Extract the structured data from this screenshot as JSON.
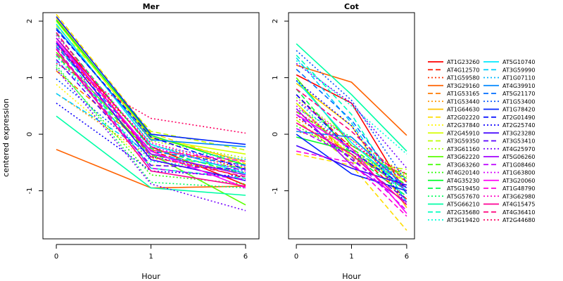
{
  "ylabel": "centered expression",
  "chart_data": [
    {
      "type": "line",
      "title": "Mer",
      "xlabel": "Hour",
      "ylabel": "centered expression",
      "x": [
        "0",
        "1",
        "6"
      ],
      "ylim": [
        -1.85,
        2.15
      ],
      "yticks": [
        -1,
        0,
        1,
        2
      ],
      "series": [
        {
          "name": "AT1G23260",
          "values": [
            1.7,
            -0.22,
            -0.9
          ]
        },
        {
          "name": "AT4G12570",
          "values": [
            1.62,
            -0.3,
            -0.78
          ]
        },
        {
          "name": "AT1G59580",
          "values": [
            1.55,
            -0.18,
            -0.62
          ]
        },
        {
          "name": "AT3G29160",
          "values": [
            -0.27,
            -0.95,
            -0.92
          ]
        },
        {
          "name": "AT1G53165",
          "values": [
            1.12,
            -0.28,
            -0.52
          ]
        },
        {
          "name": "AT1G53440",
          "values": [
            0.72,
            -0.42,
            -0.68
          ]
        },
        {
          "name": "AT1G64630",
          "values": [
            2.05,
            -0.05,
            -0.48
          ]
        },
        {
          "name": "AT2G02220",
          "values": [
            2.12,
            0.02,
            -0.52
          ]
        },
        {
          "name": "AT2G37840",
          "values": [
            0.88,
            -0.55,
            -0.58
          ]
        },
        {
          "name": "AT2G45910",
          "values": [
            2.0,
            -0.08,
            -0.35
          ]
        },
        {
          "name": "AT3G59350",
          "values": [
            1.92,
            0.05,
            -0.28
          ]
        },
        {
          "name": "AT3G61160",
          "values": [
            1.88,
            -0.12,
            -0.42
          ]
        },
        {
          "name": "AT3G62220",
          "values": [
            1.45,
            -0.35,
            -1.25
          ]
        },
        {
          "name": "AT3G63260",
          "values": [
            1.4,
            -0.38,
            -0.6
          ]
        },
        {
          "name": "AT4G20140",
          "values": [
            1.18,
            -0.72,
            -0.88
          ]
        },
        {
          "name": "AT4G35230",
          "values": [
            2.02,
            -0.02,
            -0.55
          ]
        },
        {
          "name": "AT5G19450",
          "values": [
            1.78,
            -0.25,
            -0.72
          ]
        },
        {
          "name": "AT5G57670",
          "values": [
            1.22,
            -0.85,
            -0.95
          ]
        },
        {
          "name": "AT5G66210",
          "values": [
            0.32,
            -0.95,
            -1.08
          ]
        },
        {
          "name": "AT2G35680",
          "values": [
            1.6,
            -0.6,
            -0.78
          ]
        },
        {
          "name": "AT3G19420",
          "values": [
            1.38,
            -0.48,
            -0.65
          ]
        },
        {
          "name": "AT5G10740",
          "values": [
            1.95,
            -0.18,
            -0.7
          ]
        },
        {
          "name": "AT3G59990",
          "values": [
            0.72,
            -0.35,
            -0.62
          ]
        },
        {
          "name": "AT1G07110",
          "values": [
            1.28,
            -0.22,
            -0.45
          ]
        },
        {
          "name": "AT4G39910",
          "values": [
            1.88,
            -0.1,
            -0.22
          ]
        },
        {
          "name": "AT5G21170",
          "values": [
            1.55,
            -0.3,
            -0.55
          ]
        },
        {
          "name": "AT1G53400",
          "values": [
            0.98,
            -0.4,
            -0.68
          ]
        },
        {
          "name": "AT1G78420",
          "values": [
            2.08,
            0.0,
            -0.18
          ]
        },
        {
          "name": "AT2G01490",
          "values": [
            1.85,
            -0.05,
            -0.62
          ]
        },
        {
          "name": "AT2G25740",
          "values": [
            0.55,
            -0.65,
            -0.75
          ]
        },
        {
          "name": "AT3G23280",
          "values": [
            1.62,
            -0.45,
            -0.82
          ]
        },
        {
          "name": "AT3G53410",
          "values": [
            1.32,
            -0.55,
            -0.62
          ]
        },
        {
          "name": "AT4G25970",
          "values": [
            1.15,
            -0.88,
            -1.35
          ]
        },
        {
          "name": "AT5G06260",
          "values": [
            1.7,
            -0.35,
            -0.72
          ]
        },
        {
          "name": "AT1G08460",
          "values": [
            1.52,
            -0.6,
            -0.8
          ]
        },
        {
          "name": "AT1G63800",
          "values": [
            1.75,
            -0.22,
            -0.65
          ]
        },
        {
          "name": "AT3G20060",
          "values": [
            1.65,
            -0.3,
            -0.95
          ]
        },
        {
          "name": "AT1G48790",
          "values": [
            1.42,
            -0.28,
            -0.48
          ]
        },
        {
          "name": "AT3G62980",
          "values": [
            1.58,
            -0.15,
            -0.58
          ]
        },
        {
          "name": "AT4G15475",
          "values": [
            1.5,
            -0.65,
            -0.92
          ]
        },
        {
          "name": "AT4G36410",
          "values": [
            1.8,
            -0.4,
            -0.75
          ]
        },
        {
          "name": "AT2G44680",
          "values": [
            1.25,
            0.28,
            0.02
          ]
        }
      ]
    },
    {
      "type": "line",
      "title": "Cot",
      "xlabel": "Hour",
      "ylabel": "",
      "x": [
        "0",
        "1",
        "6"
      ],
      "ylim": [
        -1.85,
        2.15
      ],
      "yticks": [
        -1,
        0,
        1,
        2
      ],
      "series": [
        {
          "name": "AT1G23260",
          "values": [
            1.05,
            0.55,
            -1.05
          ]
        },
        {
          "name": "AT4G12570",
          "values": [
            0.7,
            -0.25,
            -1.15
          ]
        },
        {
          "name": "AT1G59580",
          "values": [
            0.3,
            -0.35,
            -0.95
          ]
        },
        {
          "name": "AT3G29160",
          "values": [
            1.22,
            0.92,
            -0.02
          ]
        },
        {
          "name": "AT1G53165",
          "values": [
            0.55,
            -0.45,
            -0.7
          ]
        },
        {
          "name": "AT1G53440",
          "values": [
            0.05,
            -0.2,
            -0.75
          ]
        },
        {
          "name": "AT1G64630",
          "values": [
            0.9,
            0.15,
            -1.3
          ]
        },
        {
          "name": "AT2G02220",
          "values": [
            -0.35,
            -0.55,
            -1.7
          ]
        },
        {
          "name": "AT2G37840",
          "values": [
            0.2,
            -0.3,
            -0.85
          ]
        },
        {
          "name": "AT2G45910",
          "values": [
            0.55,
            -0.4,
            -0.82
          ]
        },
        {
          "name": "AT3G59350",
          "values": [
            0.25,
            -0.5,
            -0.62
          ]
        },
        {
          "name": "AT3G61160",
          "values": [
            0.65,
            -0.1,
            -0.72
          ]
        },
        {
          "name": "AT3G62220",
          "values": [
            1.0,
            -0.2,
            -0.78
          ]
        },
        {
          "name": "AT3G63260",
          "values": [
            0.4,
            -0.25,
            -0.9
          ]
        },
        {
          "name": "AT4G20140",
          "values": [
            0.15,
            -0.4,
            -0.7
          ]
        },
        {
          "name": "AT4G35230",
          "values": [
            -0.05,
            -0.3,
            -1.0
          ]
        },
        {
          "name": "AT5G19450",
          "values": [
            0.8,
            -0.35,
            -1.1
          ]
        },
        {
          "name": "AT5G57670",
          "values": [
            0.45,
            -0.05,
            -0.95
          ]
        },
        {
          "name": "AT5G66210",
          "values": [
            1.6,
            0.7,
            -0.3
          ]
        },
        {
          "name": "AT2G35680",
          "values": [
            1.4,
            0.35,
            -1.2
          ]
        },
        {
          "name": "AT3G19420",
          "values": [
            1.3,
            0.5,
            -0.35
          ]
        },
        {
          "name": "AT5G10740",
          "values": [
            0.95,
            -0.15,
            -1.0
          ]
        },
        {
          "name": "AT3G59990",
          "values": [
            1.35,
            0.2,
            -1.2
          ]
        },
        {
          "name": "AT1G07110",
          "values": [
            0.6,
            -0.3,
            -0.8
          ]
        },
        {
          "name": "AT4G39910",
          "values": [
            0.05,
            -0.05,
            -0.95
          ]
        },
        {
          "name": "AT5G21170",
          "values": [
            1.15,
            0.25,
            -1.05
          ]
        },
        {
          "name": "AT1G53400",
          "values": [
            1.48,
            0.6,
            -0.85
          ]
        },
        {
          "name": "AT1G78420",
          "values": [
            0.0,
            -0.7,
            -1.0
          ]
        },
        {
          "name": "AT2G01490",
          "values": [
            0.7,
            -0.3,
            -0.95
          ]
        },
        {
          "name": "AT2G25740",
          "values": [
            0.95,
            0.15,
            -1.25
          ]
        },
        {
          "name": "AT3G23280",
          "values": [
            -0.2,
            -0.6,
            -0.9
          ]
        },
        {
          "name": "AT3G53410",
          "values": [
            0.35,
            -0.45,
            -1.15
          ]
        },
        {
          "name": "AT4G25970",
          "values": [
            1.25,
            0.55,
            -0.6
          ]
        },
        {
          "name": "AT5G06260",
          "values": [
            0.45,
            -0.55,
            -1.2
          ]
        },
        {
          "name": "AT1G08460",
          "values": [
            0.1,
            -0.4,
            -1.35
          ]
        },
        {
          "name": "AT1G63800",
          "values": [
            0.5,
            -0.3,
            -1.0
          ]
        },
        {
          "name": "AT3G20060",
          "values": [
            0.35,
            -0.25,
            -1.4
          ]
        },
        {
          "name": "AT1G48790",
          "values": [
            -0.3,
            -0.5,
            -1.45
          ]
        },
        {
          "name": "AT3G62980",
          "values": [
            0.6,
            -0.1,
            -0.95
          ]
        },
        {
          "name": "AT4G15475",
          "values": [
            0.2,
            -0.35,
            -1.25
          ]
        },
        {
          "name": "AT4G36410",
          "values": [
            0.8,
            0.05,
            -0.85
          ]
        },
        {
          "name": "AT2G44680",
          "values": [
            0.4,
            -0.2,
            -0.7
          ]
        }
      ]
    }
  ],
  "legend": {
    "placement": "right",
    "entries": [
      {
        "name": "AT1G23260",
        "color": "#ff0000",
        "dash": "solid"
      },
      {
        "name": "AT4G12570",
        "color": "#ff1a00",
        "dash": "dashed"
      },
      {
        "name": "AT1G59580",
        "color": "#ff3300",
        "dash": "dotted"
      },
      {
        "name": "AT3G29160",
        "color": "#ff6200",
        "dash": "solid"
      },
      {
        "name": "AT1G53165",
        "color": "#ff7a00",
        "dash": "dashed"
      },
      {
        "name": "AT1G53440",
        "color": "#ff9400",
        "dash": "dotted"
      },
      {
        "name": "AT1G64630",
        "color": "#ffc400",
        "dash": "solid"
      },
      {
        "name": "AT2G02220",
        "color": "#ffdd00",
        "dash": "dashed"
      },
      {
        "name": "AT2G37840",
        "color": "#fff600",
        "dash": "dotted"
      },
      {
        "name": "AT2G45910",
        "color": "#d6ff00",
        "dash": "solid"
      },
      {
        "name": "AT3G59350",
        "color": "#bdff00",
        "dash": "dashed"
      },
      {
        "name": "AT3G61160",
        "color": "#a3ff00",
        "dash": "dotted"
      },
      {
        "name": "AT3G62220",
        "color": "#5aff00",
        "dash": "solid"
      },
      {
        "name": "AT3G63260",
        "color": "#40ff00",
        "dash": "dashed"
      },
      {
        "name": "AT4G20140",
        "color": "#27ff00",
        "dash": "dotted"
      },
      {
        "name": "AT4G35230",
        "color": "#00ff2a",
        "dash": "solid"
      },
      {
        "name": "AT5G19450",
        "color": "#00ff44",
        "dash": "dashed"
      },
      {
        "name": "AT5G57670",
        "color": "#00ff5d",
        "dash": "dotted"
      },
      {
        "name": "AT5G66210",
        "color": "#00ffa6",
        "dash": "solid"
      },
      {
        "name": "AT2G35680",
        "color": "#00ffbf",
        "dash": "dashed"
      },
      {
        "name": "AT3G19420",
        "color": "#00ffd9",
        "dash": "dotted"
      },
      {
        "name": "AT5G10740",
        "color": "#00eaff",
        "dash": "solid"
      },
      {
        "name": "AT3G59990",
        "color": "#00d0ff",
        "dash": "dashed"
      },
      {
        "name": "AT1G07110",
        "color": "#00b7ff",
        "dash": "dotted"
      },
      {
        "name": "AT4G39910",
        "color": "#0087ff",
        "dash": "solid"
      },
      {
        "name": "AT5G21170",
        "color": "#006eff",
        "dash": "dashed"
      },
      {
        "name": "AT1G53400",
        "color": "#0055ff",
        "dash": "dotted"
      },
      {
        "name": "AT1G78420",
        "color": "#0024ff",
        "dash": "solid"
      },
      {
        "name": "AT2G01490",
        "color": "#000aff",
        "dash": "dashed"
      },
      {
        "name": "AT2G25740",
        "color": "#0f00ff",
        "dash": "dotted"
      },
      {
        "name": "AT3G23280",
        "color": "#4000ff",
        "dash": "solid"
      },
      {
        "name": "AT3G53410",
        "color": "#5a00ff",
        "dash": "dashed"
      },
      {
        "name": "AT4G25970",
        "color": "#7300ff",
        "dash": "dotted"
      },
      {
        "name": "AT5G06260",
        "color": "#a300ff",
        "dash": "solid"
      },
      {
        "name": "AT1G08460",
        "color": "#bd00ff",
        "dash": "dashed"
      },
      {
        "name": "AT1G63800",
        "color": "#d600ff",
        "dash": "dotted"
      },
      {
        "name": "AT3G20060",
        "color": "#ff00f6",
        "dash": "solid"
      },
      {
        "name": "AT1G48790",
        "color": "#ff00dd",
        "dash": "dashed"
      },
      {
        "name": "AT3G62980",
        "color": "#ff00c4",
        "dash": "dotted"
      },
      {
        "name": "AT4G15475",
        "color": "#ff0094",
        "dash": "solid"
      },
      {
        "name": "AT4G36410",
        "color": "#ff007a",
        "dash": "dashed"
      },
      {
        "name": "AT2G44680",
        "color": "#ff0062",
        "dash": "dotted"
      }
    ]
  }
}
